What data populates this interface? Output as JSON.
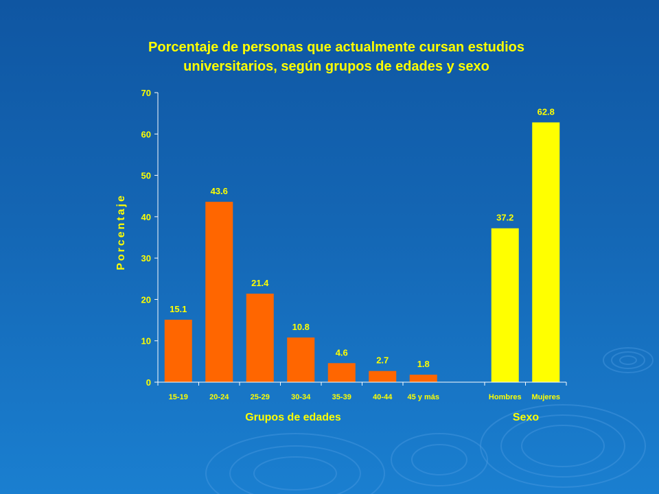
{
  "chart_data": {
    "type": "bar",
    "title_lines": [
      "Porcentaje de personas que actualmente cursan estudios",
      "universitarios, según grupos de edades y sexo"
    ],
    "ylabel": "Porcentaje",
    "ylim": [
      0,
      70
    ],
    "yticks": [
      0,
      10,
      20,
      30,
      40,
      50,
      60,
      70
    ],
    "grid": false,
    "groups": [
      {
        "label": "Grupos de edades",
        "color": "#ff6600",
        "categories": [
          "15-19",
          "20-24",
          "25-29",
          "30-34",
          "35-39",
          "40-44",
          "45 y más"
        ],
        "values": [
          15.1,
          43.6,
          21.4,
          10.8,
          4.6,
          2.7,
          1.8
        ],
        "value_labels": [
          "15.1",
          "43.6",
          "21.4",
          "10.8",
          "4.6",
          "2.7",
          "1.8"
        ]
      },
      {
        "label": "Sexo",
        "color": "#ffff00",
        "categories": [
          "Hombres",
          "Mujeres"
        ],
        "values": [
          37.2,
          62.8
        ],
        "value_labels": [
          "37.2",
          "62.8"
        ]
      }
    ],
    "text_color": "#ffff00"
  }
}
